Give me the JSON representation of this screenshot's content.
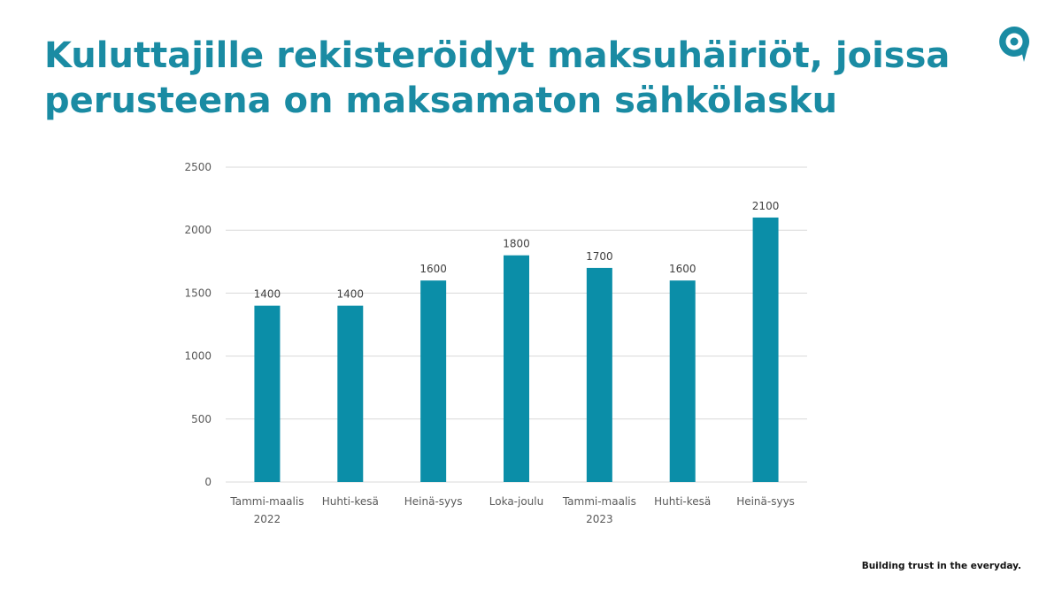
{
  "slide": {
    "title_lines": [
      "Kuluttajille rekisteröidyt maksuhäiriöt, joissa",
      "perusteena on maksamaton sähkölasku"
    ],
    "tagline": "Building trust in the everyday.",
    "logo_icon": "location-pin-icon",
    "accent_color": "#1a8ba3"
  },
  "chart_data": {
    "type": "bar",
    "categories": [
      [
        "Tammi-maalis",
        "2022"
      ],
      [
        "Huhti-kesä",
        ""
      ],
      [
        "Heinä-syys",
        ""
      ],
      [
        "Loka-joulu",
        ""
      ],
      [
        "Tammi-maalis",
        "2023"
      ],
      [
        "Huhti-kesä",
        ""
      ],
      [
        "Heinä-syys",
        ""
      ]
    ],
    "values": [
      1400,
      1400,
      1600,
      1800,
      1700,
      1600,
      2100
    ],
    "data_labels": [
      "1400",
      "1400",
      "1600",
      "1800",
      "1700",
      "1600",
      "2100"
    ],
    "yticks": [
      0,
      500,
      1000,
      1500,
      2000,
      2500
    ],
    "ylim": [
      0,
      2500
    ],
    "grid": true,
    "legend": "none",
    "bar_color": "#0b8ea8",
    "grid_color": "#d9d9d9"
  }
}
